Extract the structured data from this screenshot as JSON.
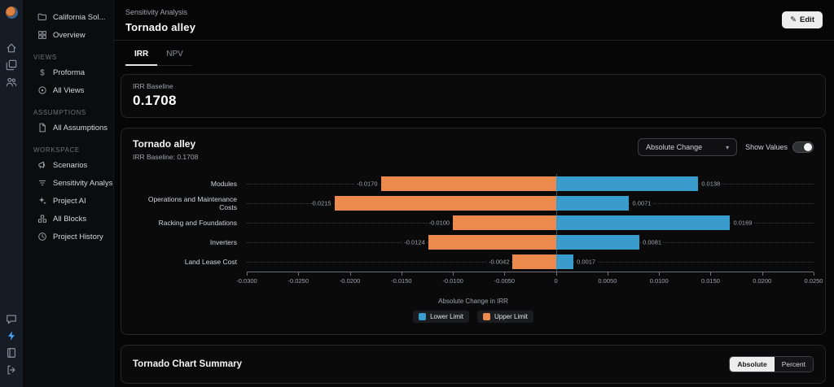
{
  "rail": {
    "top_icons": [
      "home-icon",
      "layers-icon",
      "users-icon"
    ],
    "bottom_icons": [
      "chat-icon",
      "bolt-icon",
      "book-icon",
      "logout-icon"
    ],
    "bolt_color": "#4ba3f5"
  },
  "sidebar": {
    "sections": [
      {
        "header": "",
        "items": [
          {
            "icon": "folder",
            "label": "California Sol...",
            "chevron": true
          },
          {
            "icon": "grid",
            "label": "Overview"
          }
        ]
      },
      {
        "header": "VIEWS",
        "items": [
          {
            "icon": "dollar",
            "label": "Proforma"
          },
          {
            "icon": "views",
            "label": "All Views"
          }
        ]
      },
      {
        "header": "ASSUMPTIONS",
        "items": [
          {
            "icon": "doc",
            "label": "All Assumptions"
          }
        ]
      },
      {
        "header": "WORKSPACE",
        "items": [
          {
            "icon": "horn",
            "label": "Scenarios"
          },
          {
            "icon": "filter",
            "label": "Sensitivity Analysis"
          },
          {
            "icon": "sparkles",
            "label": "Project AI"
          },
          {
            "icon": "blocks",
            "label": "All Blocks"
          },
          {
            "icon": "clock",
            "label": "Project History"
          }
        ]
      }
    ]
  },
  "header": {
    "breadcrumb": "Sensitivity Analysis",
    "title": "Tornado alley",
    "edit_label": "Edit"
  },
  "tabs": [
    {
      "label": "IRR",
      "active": true
    },
    {
      "label": "NPV",
      "active": false
    }
  ],
  "baseline_card": {
    "label": "IRR Baseline",
    "value": "0.1708"
  },
  "chart_card": {
    "title": "Tornado alley",
    "subtitle": "IRR Baseline: 0.1708",
    "dropdown_value": "Absolute Change",
    "show_values_label": "Show Values",
    "show_values_on": true
  },
  "chart_data": {
    "type": "bar",
    "orientation": "horizontal",
    "title": "Tornado alley",
    "categories": [
      "Modules",
      "Operations and Maintenance Costs",
      "Racking and Foundations",
      "Inverters",
      "Land Lease Cost"
    ],
    "series": [
      {
        "name": "Lower Limit",
        "color": "#3a9ccd",
        "values": [
          0.0138,
          0.0071,
          0.0169,
          0.0081,
          0.0017
        ],
        "labels": [
          "0.0138",
          "0.0071",
          "0.0169",
          "0.0081",
          "0.0017"
        ]
      },
      {
        "name": "Upper Limit",
        "color": "#ec8a4d",
        "values": [
          -0.017,
          -0.0215,
          -0.01,
          -0.0124,
          -0.0042
        ],
        "labels": [
          "-0.0170",
          "-0.0215",
          "-0.0100",
          "-0.0124",
          "-0.0042"
        ]
      }
    ],
    "xlabel": "Absolute Change in IRR",
    "xlim": [
      -0.03,
      0.025
    ],
    "xtick_values": [
      -0.03,
      -0.025,
      -0.02,
      -0.015,
      -0.01,
      -0.005,
      0,
      0.005,
      0.01,
      0.015,
      0.02,
      0.025
    ],
    "xtick_labels": [
      "-0.0300",
      "-0.0250",
      "-0.0200",
      "-0.0150",
      "-0.0100",
      "-0.0050",
      "0",
      "0.0050",
      "0.0100",
      "0.0150",
      "0.0200",
      "0.0250"
    ],
    "legend_position": "bottom",
    "grid": false
  },
  "summary_card": {
    "title": "Tornado Chart Summary",
    "buttons": {
      "0": "Absolute",
      "1": "Percent"
    },
    "active": "Absolute"
  }
}
